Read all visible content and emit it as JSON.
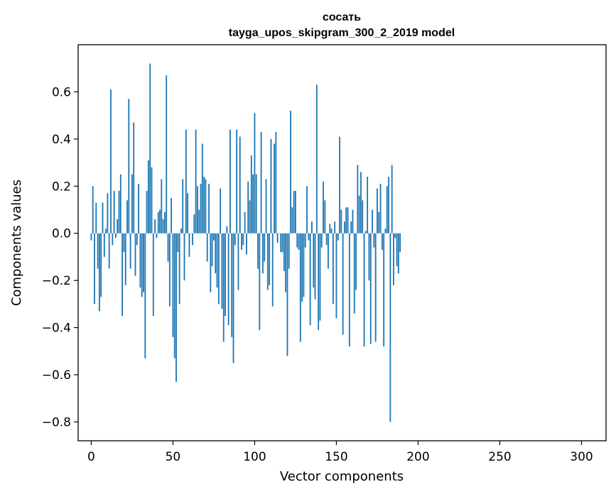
{
  "chart_data": {
    "type": "bar",
    "title": "сосать",
    "subtitle": "tayga_upos_skipgram_300_2_2019 model",
    "xlabel": "Vector components",
    "ylabel": "Components values",
    "xlim": [
      -8,
      315
    ],
    "ylim": [
      -0.88,
      0.8
    ],
    "xticks": [
      0,
      50,
      100,
      150,
      200,
      250,
      300
    ],
    "yticks": [
      -0.8,
      -0.6,
      -0.4,
      -0.2,
      0.0,
      0.2,
      0.4,
      0.6
    ],
    "ytick_labels": [
      "−0.8",
      "−0.6",
      "−0.4",
      "−0.2",
      "0.0",
      "0.2",
      "0.4",
      "0.6"
    ],
    "xtick_labels": [
      "0",
      "50",
      "100",
      "150",
      "200",
      "250",
      "300"
    ],
    "bar_color": "#1f77b4",
    "values": [
      -0.03,
      0.2,
      -0.3,
      0.13,
      -0.15,
      -0.33,
      -0.27,
      0.13,
      -0.1,
      0.02,
      0.17,
      -0.15,
      0.61,
      -0.05,
      0.18,
      -0.02,
      0.06,
      0.18,
      0.25,
      -0.35,
      -0.08,
      -0.22,
      0.14,
      0.57,
      -0.15,
      0.25,
      0.47,
      -0.18,
      -0.05,
      0.21,
      -0.23,
      -0.27,
      -0.25,
      -0.53,
      0.18,
      0.31,
      0.72,
      0.28,
      -0.35,
      0.06,
      -0.02,
      0.09,
      0.1,
      0.23,
      0.06,
      0.09,
      0.67,
      -0.12,
      -0.31,
      0.15,
      -0.44,
      -0.53,
      -0.63,
      -0.08,
      -0.3,
      0.02,
      0.23,
      -0.2,
      0.44,
      0.17,
      -0.1,
      0.0,
      -0.05,
      0.08,
      0.44,
      0.2,
      0.1,
      0.21,
      0.38,
      0.24,
      0.23,
      -0.12,
      0.21,
      -0.25,
      -0.14,
      -0.03,
      -0.17,
      -0.23,
      -0.3,
      0.19,
      -0.32,
      -0.46,
      -0.35,
      0.03,
      -0.39,
      0.44,
      -0.44,
      -0.55,
      -0.05,
      0.44,
      -0.24,
      0.41,
      -0.07,
      -0.05,
      0.09,
      -0.09,
      0.22,
      0.14,
      0.33,
      0.25,
      0.51,
      0.25,
      -0.15,
      -0.41,
      0.43,
      -0.17,
      -0.12,
      0.23,
      -0.24,
      -0.22,
      0.4,
      -0.31,
      0.38,
      0.43,
      -0.04,
      0.0,
      -0.08,
      -0.08,
      -0.16,
      -0.25,
      -0.52,
      -0.15,
      0.52,
      0.11,
      0.18,
      0.18,
      -0.06,
      -0.07,
      -0.46,
      -0.29,
      -0.27,
      -0.06,
      0.2,
      -0.03,
      -0.39,
      0.05,
      -0.23,
      -0.28,
      0.63,
      -0.41,
      -0.37,
      -0.06,
      0.22,
      0.14,
      -0.05,
      -0.15,
      0.04,
      0.02,
      -0.3,
      0.05,
      -0.36,
      -0.03,
      0.41,
      0.1,
      -0.43,
      0.05,
      0.11,
      0.11,
      -0.48,
      0.05,
      0.1,
      -0.34,
      -0.24,
      0.29,
      0.16,
      0.26,
      0.14,
      -0.48,
      0.01,
      0.24,
      -0.2,
      -0.47,
      0.1,
      -0.06,
      -0.46,
      0.19,
      0.09,
      0.21,
      -0.07,
      -0.48,
      0.02,
      0.2,
      0.24,
      -0.8,
      0.29,
      -0.22,
      -0.02,
      -0.14,
      -0.17,
      -0.08
    ]
  }
}
